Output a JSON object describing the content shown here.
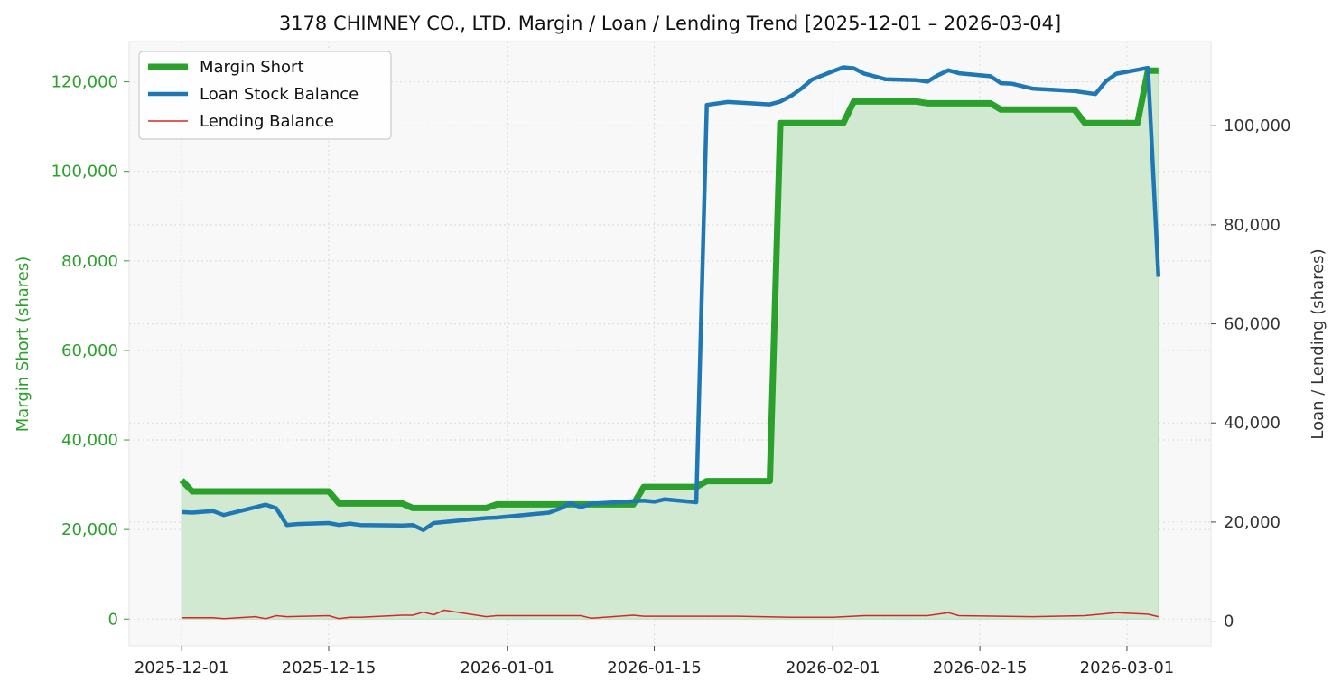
{
  "chart_data": {
    "type": "line",
    "title": "3178 CHIMNEY CO., LTD. Margin / Loan / Lending Trend [2025-12-01 – 2026-03-04]",
    "y_left_label": "Margin Short (shares)",
    "y_right_label": "Loan / Lending (shares)",
    "x_range": [
      "2025-11-26",
      "2026-03-09"
    ],
    "y_left_range": [
      -6000,
      129000
    ],
    "y_right_range": [
      -5000,
      117000
    ],
    "x_ticks": [
      "2025-12-01",
      "2025-12-15",
      "2026-01-01",
      "2026-01-15",
      "2026-02-01",
      "2026-02-15",
      "2026-03-01"
    ],
    "y_left_ticks": [
      0,
      20000,
      40000,
      60000,
      80000,
      100000,
      120000
    ],
    "y_right_ticks": [
      0,
      20000,
      40000,
      60000,
      80000,
      100000
    ],
    "y_left_tick_labels": [
      "0",
      "20,000",
      "40,000",
      "60,000",
      "80,000",
      "100,000",
      "120,000"
    ],
    "y_right_tick_labels": [
      "0",
      "20,000",
      "40,000",
      "60,000",
      "80,000",
      "100,000"
    ],
    "grid": true,
    "legend_position": "top-left",
    "colors": {
      "margin": "#2ca02c",
      "loan": "#1f77b4",
      "lending": "#d62728",
      "fill": "#d0e9d0",
      "plot_bg": "#f8f8f8",
      "left_axis_text": "#2ca02c",
      "right_axis_text": "#333333"
    },
    "series": [
      {
        "name": "Margin Short",
        "axis": "left",
        "points": [
          [
            "2025-12-01",
            31000
          ],
          [
            "2025-12-02",
            28500
          ],
          [
            "2025-12-15",
            28500
          ],
          [
            "2025-12-16",
            25800
          ],
          [
            "2025-12-22",
            25800
          ],
          [
            "2025-12-23",
            24800
          ],
          [
            "2025-12-30",
            24800
          ],
          [
            "2025-12-31",
            25600
          ],
          [
            "2026-01-13",
            25600
          ],
          [
            "2026-01-14",
            29500
          ],
          [
            "2026-01-19",
            29500
          ],
          [
            "2026-01-20",
            30800
          ],
          [
            "2026-01-26",
            30800
          ],
          [
            "2026-01-27",
            110800
          ],
          [
            "2026-02-02",
            110800
          ],
          [
            "2026-02-03",
            115600
          ],
          [
            "2026-02-09",
            115600
          ],
          [
            "2026-02-10",
            115200
          ],
          [
            "2026-02-16",
            115200
          ],
          [
            "2026-02-17",
            113800
          ],
          [
            "2026-02-24",
            113800
          ],
          [
            "2026-02-25",
            110800
          ],
          [
            "2026-03-02",
            110800
          ],
          [
            "2026-03-03",
            122500
          ],
          [
            "2026-03-04",
            122500
          ]
        ]
      },
      {
        "name": "Loan Stock Balance",
        "axis": "right",
        "points": [
          [
            "2025-12-01",
            22000
          ],
          [
            "2025-12-02",
            21900
          ],
          [
            "2025-12-04",
            22200
          ],
          [
            "2025-12-05",
            21400
          ],
          [
            "2025-12-09",
            23500
          ],
          [
            "2025-12-10",
            22800
          ],
          [
            "2025-12-11",
            19400
          ],
          [
            "2025-12-12",
            19600
          ],
          [
            "2025-12-15",
            19800
          ],
          [
            "2025-12-16",
            19400
          ],
          [
            "2025-12-17",
            19700
          ],
          [
            "2025-12-18",
            19400
          ],
          [
            "2025-12-22",
            19300
          ],
          [
            "2025-12-23",
            19400
          ],
          [
            "2025-12-24",
            18400
          ],
          [
            "2025-12-25",
            19800
          ],
          [
            "2025-12-29",
            20600
          ],
          [
            "2025-12-30",
            20800
          ],
          [
            "2025-12-31",
            20900
          ],
          [
            "2026-01-05",
            21900
          ],
          [
            "2026-01-06",
            22700
          ],
          [
            "2026-01-07",
            23800
          ],
          [
            "2026-01-08",
            23000
          ],
          [
            "2026-01-09",
            23700
          ],
          [
            "2026-01-13",
            24200
          ],
          [
            "2026-01-14",
            24300
          ],
          [
            "2026-01-15",
            24100
          ],
          [
            "2026-01-16",
            24600
          ],
          [
            "2026-01-19",
            24000
          ],
          [
            "2026-01-20",
            104200
          ],
          [
            "2026-01-22",
            104800
          ],
          [
            "2026-01-26",
            104300
          ],
          [
            "2026-01-27",
            104900
          ],
          [
            "2026-01-28",
            106000
          ],
          [
            "2026-01-29",
            107500
          ],
          [
            "2026-01-30",
            109300
          ],
          [
            "2026-02-01",
            111000
          ],
          [
            "2026-02-02",
            111800
          ],
          [
            "2026-02-03",
            111600
          ],
          [
            "2026-02-04",
            110500
          ],
          [
            "2026-02-06",
            109400
          ],
          [
            "2026-02-09",
            109200
          ],
          [
            "2026-02-10",
            108900
          ],
          [
            "2026-02-11",
            110200
          ],
          [
            "2026-02-12",
            111200
          ],
          [
            "2026-02-13",
            110600
          ],
          [
            "2026-02-16",
            110000
          ],
          [
            "2026-02-17",
            108600
          ],
          [
            "2026-02-18",
            108500
          ],
          [
            "2026-02-20",
            107500
          ],
          [
            "2026-02-24",
            107000
          ],
          [
            "2026-02-26",
            106400
          ],
          [
            "2026-02-27",
            109000
          ],
          [
            "2026-02-28",
            110500
          ],
          [
            "2026-03-02",
            111300
          ],
          [
            "2026-03-03",
            111700
          ],
          [
            "2026-03-04",
            69500
          ]
        ]
      },
      {
        "name": "Lending Balance",
        "axis": "right",
        "points": [
          [
            "2025-12-01",
            700
          ],
          [
            "2025-12-04",
            700
          ],
          [
            "2025-12-05",
            500
          ],
          [
            "2025-12-08",
            900
          ],
          [
            "2025-12-09",
            500
          ],
          [
            "2025-12-10",
            1100
          ],
          [
            "2025-12-11",
            900
          ],
          [
            "2025-12-15",
            1100
          ],
          [
            "2025-12-16",
            500
          ],
          [
            "2025-12-17",
            800
          ],
          [
            "2025-12-18",
            800
          ],
          [
            "2025-12-22",
            1200
          ],
          [
            "2025-12-23",
            1200
          ],
          [
            "2025-12-24",
            1800
          ],
          [
            "2025-12-25",
            1300
          ],
          [
            "2025-12-26",
            2200
          ],
          [
            "2025-12-30",
            900
          ],
          [
            "2025-12-31",
            1100
          ],
          [
            "2026-01-08",
            1100
          ],
          [
            "2026-01-09",
            600
          ],
          [
            "2026-01-13",
            1200
          ],
          [
            "2026-01-14",
            1000
          ],
          [
            "2026-01-23",
            1000
          ],
          [
            "2026-01-28",
            800
          ],
          [
            "2026-02-01",
            800
          ],
          [
            "2026-02-04",
            1100
          ],
          [
            "2026-02-10",
            1100
          ],
          [
            "2026-02-12",
            1700
          ],
          [
            "2026-02-13",
            1100
          ],
          [
            "2026-02-20",
            900
          ],
          [
            "2026-02-25",
            1100
          ],
          [
            "2026-02-28",
            1700
          ],
          [
            "2026-03-03",
            1400
          ],
          [
            "2026-03-04",
            900
          ]
        ]
      }
    ]
  }
}
